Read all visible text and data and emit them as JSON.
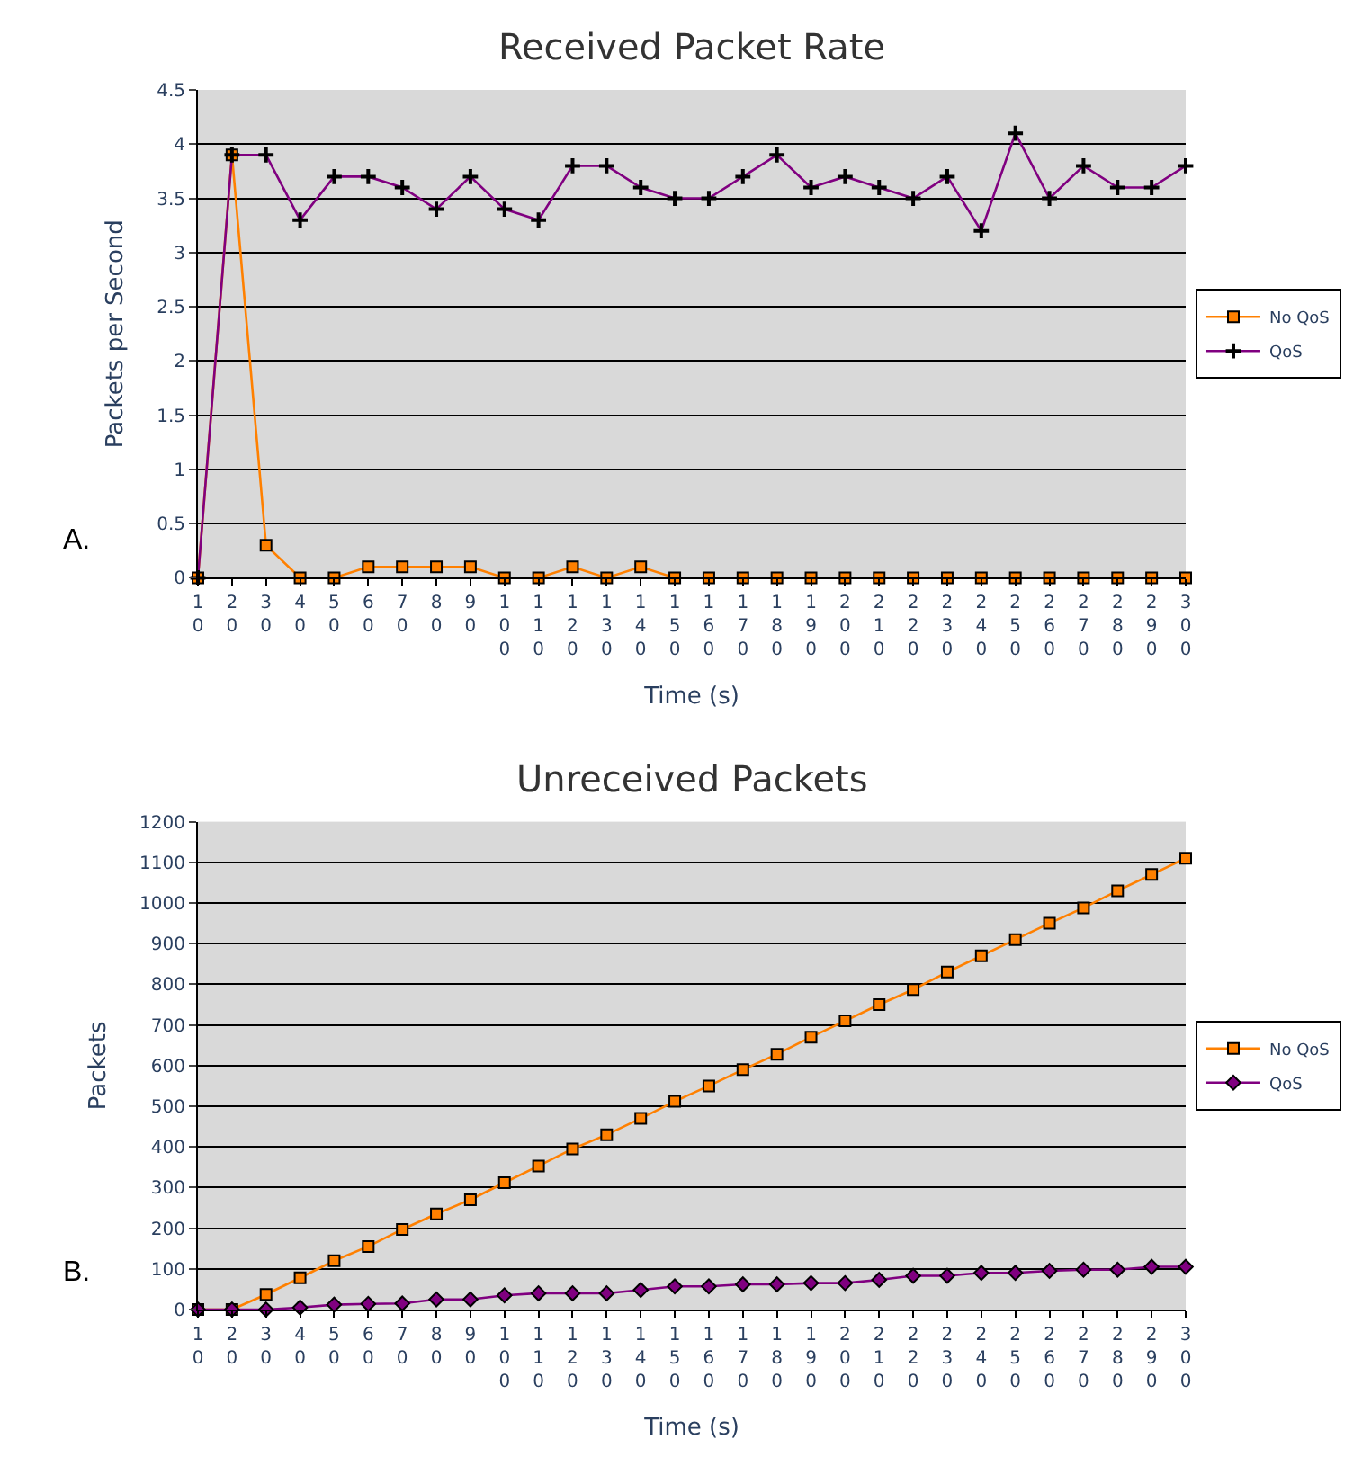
{
  "chart_data": [
    {
      "type": "line",
      "title": "Received Packet Rate",
      "xlabel": "Time (s)",
      "ylabel": "Packets per Second",
      "annotations": [
        "A."
      ],
      "categories": [
        "10",
        "20",
        "30",
        "40",
        "50",
        "60",
        "70",
        "80",
        "90",
        "100",
        "110",
        "120",
        "130",
        "140",
        "150",
        "160",
        "170",
        "180",
        "190",
        "200",
        "210",
        "220",
        "230",
        "240",
        "250",
        "260",
        "270",
        "280",
        "290",
        "300"
      ],
      "series": [
        {
          "name": "No QoS",
          "color": "#ff8000",
          "marker": "square",
          "values": [
            0,
            3.9,
            0.3,
            0,
            0,
            0.1,
            0.1,
            0.1,
            0.1,
            0,
            0,
            0.1,
            0,
            0.1,
            0,
            0,
            0,
            0,
            0,
            0,
            0,
            0,
            0,
            0,
            0,
            0,
            0,
            0,
            0,
            0
          ]
        },
        {
          "name": "QoS",
          "color": "#800080",
          "marker": "cross",
          "values": [
            0,
            3.9,
            3.9,
            3.3,
            3.7,
            3.7,
            3.6,
            3.4,
            3.7,
            3.4,
            3.3,
            3.8,
            3.8,
            3.6,
            3.5,
            3.5,
            3.7,
            3.9,
            3.6,
            3.7,
            3.6,
            3.5,
            3.7,
            3.2,
            4.1,
            3.5,
            3.8,
            3.6,
            3.6,
            3.8
          ]
        }
      ],
      "ylim": [
        0,
        4.5
      ],
      "yticks": [
        0,
        0.5,
        1,
        1.5,
        2,
        2.5,
        3,
        3.5,
        4,
        4.5
      ],
      "grid": "y",
      "legend": "right",
      "line_style": "solid"
    },
    {
      "type": "line",
      "title": "Unreceived Packets",
      "xlabel": "Time (s)",
      "ylabel": "Packets",
      "annotations": [
        "B."
      ],
      "categories": [
        "10",
        "20",
        "30",
        "40",
        "50",
        "60",
        "70",
        "80",
        "90",
        "100",
        "110",
        "120",
        "130",
        "140",
        "150",
        "160",
        "170",
        "180",
        "190",
        "200",
        "210",
        "220",
        "230",
        "240",
        "250",
        "260",
        "270",
        "280",
        "290",
        "300"
      ],
      "series": [
        {
          "name": "No QoS",
          "color": "#ff8000",
          "marker": "square",
          "values": [
            0,
            0,
            37,
            78,
            120,
            155,
            197,
            235,
            270,
            312,
            353,
            395,
            430,
            470,
            512,
            550,
            590,
            628,
            670,
            710,
            750,
            787,
            830,
            870,
            910,
            950,
            988,
            1030,
            1070,
            1110
          ]
        },
        {
          "name": "QoS",
          "color": "#800080",
          "marker": "diamond",
          "values": [
            0,
            0,
            0,
            5,
            12,
            14,
            15,
            25,
            25,
            35,
            40,
            40,
            40,
            48,
            57,
            57,
            62,
            62,
            65,
            65,
            73,
            83,
            83,
            90,
            90,
            95,
            98,
            98,
            105,
            105
          ]
        }
      ],
      "ylim": [
        0,
        1200
      ],
      "yticks": [
        0,
        100,
        200,
        300,
        400,
        500,
        600,
        700,
        800,
        900,
        1000,
        1100,
        1200
      ],
      "grid": "y",
      "legend": "right",
      "line_style": "solid"
    }
  ]
}
